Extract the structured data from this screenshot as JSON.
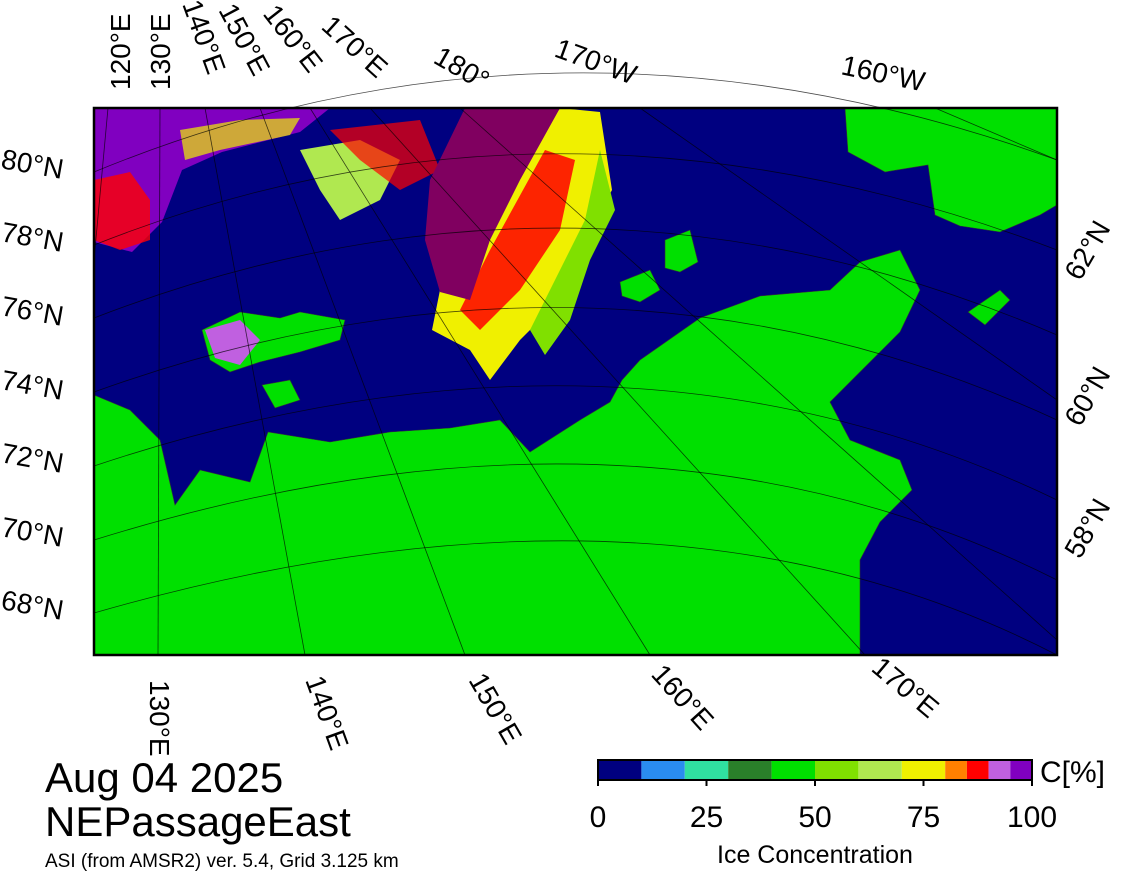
{
  "map": {
    "top_labels": [
      "120°E",
      "130°E",
      "140°E",
      "150°E",
      "160°E",
      "170°E",
      "180°",
      "170°W",
      "160°W"
    ],
    "left_labels": [
      "80°N",
      "78°N",
      "76°N",
      "74°N",
      "72°N",
      "70°N",
      "68°N"
    ],
    "right_labels": [
      "62°N",
      "60°N",
      "58°N"
    ],
    "bottom_labels": [
      "130°E",
      "140°E",
      "150°E",
      "160°E",
      "170°E"
    ]
  },
  "date": "Aug 04 2025",
  "region": "NEPassageEast",
  "credit": "ASI (from AMSR2) ver. 5.4,  Grid 3.125 km",
  "colorbar": {
    "label": "Ice Concentration",
    "unit": "C[%]",
    "range": [
      0,
      100
    ],
    "ticks": [
      0,
      25,
      50,
      75,
      100
    ],
    "bounds": [
      0,
      10,
      20,
      30,
      40,
      50,
      60,
      70,
      80,
      85,
      90,
      95,
      100
    ],
    "colors": [
      "#000080",
      "#2a8cf0",
      "#30e0a0",
      "#2a7f2a",
      "#00e000",
      "#80e000",
      "#b0e850",
      "#f0f000",
      "#ff8000",
      "#ff0000",
      "#c060e0",
      "#8000c0"
    ]
  }
}
